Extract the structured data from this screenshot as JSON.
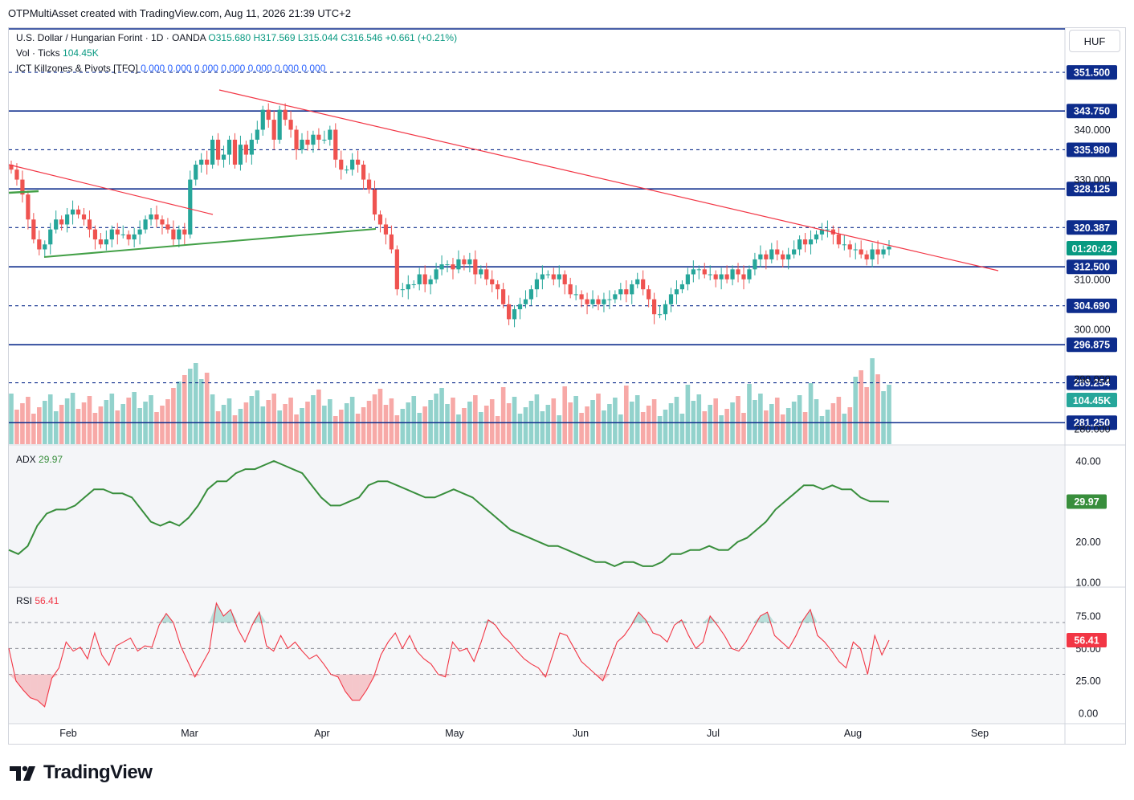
{
  "header": {
    "text": "OTPMultiAsset created with TradingView.com, Aug 11, 2026 21:39 UTC+2"
  },
  "symbol": {
    "name": "U.S. Dollar / Hungarian Forint · 1D · OANDA",
    "o": "O315.680",
    "h": "H317.569",
    "l": "L315.044",
    "c": "C316.546",
    "change": "+0.661 (+0.21%)",
    "volume_label": "Vol · Ticks",
    "volume_value": "104.45K",
    "indicator_label": "ICT Killzones & Pivots [TFO]",
    "indicator_values": "0.000  0.000  0.000  0.000  0.000  0.000  0.000"
  },
  "currency": "HUF",
  "countdown": "01:20:42",
  "colors": {
    "up": "#26a69a",
    "down": "#ef5350",
    "level": "#0d2c8c",
    "trend_red": "#f23645",
    "trend_green": "#43a047",
    "adx": "#388e3c",
    "rsi": "#f23645"
  },
  "price_axis": {
    "ticks": [
      "340.000",
      "330.000",
      "310.000",
      "300.000",
      "290.000",
      "280.000"
    ],
    "levels": [
      {
        "value": "351.500",
        "style": "dashed"
      },
      {
        "value": "343.750",
        "style": "solid"
      },
      {
        "value": "335.980",
        "style": "dashed"
      },
      {
        "value": "328.125",
        "style": "solid"
      },
      {
        "value": "320.387",
        "style": "dashed"
      },
      {
        "value": "312.500",
        "style": "solid"
      },
      {
        "value": "304.690",
        "style": "dashed"
      },
      {
        "value": "296.875",
        "style": "solid"
      },
      {
        "value": "289.254",
        "style": "dashed"
      },
      {
        "value": "281.250",
        "style": "solid"
      }
    ],
    "current_volume_tag": "104.45K"
  },
  "time_axis": {
    "labels": [
      "Feb",
      "Mar",
      "Apr",
      "May",
      "Jun",
      "Jul",
      "Aug",
      "Sep"
    ]
  },
  "adx": {
    "label": "ADX",
    "value": "29.97",
    "ticks": [
      "40.00",
      "20.00",
      "10.00"
    ]
  },
  "rsi": {
    "label": "RSI",
    "value": "56.41",
    "ticks": [
      "75.00",
      "50.00",
      "25.00",
      "0.00"
    ]
  },
  "footer": {
    "brand": "TradingView"
  },
  "chart_data": {
    "type": "candlestick",
    "title": "U.S. Dollar / Hungarian Forint · 1D · OANDA",
    "ylim": [
      279,
      353
    ],
    "closes": [
      332,
      330,
      327,
      322,
      318,
      316,
      317,
      320,
      322,
      321,
      323,
      324,
      323,
      322,
      320,
      318,
      317,
      318,
      320,
      319,
      319,
      318,
      319,
      320,
      322,
      323,
      322,
      321,
      320,
      318,
      320,
      319,
      330,
      333,
      334,
      333,
      338,
      334,
      335,
      338,
      333,
      337,
      335,
      338,
      340,
      344,
      342,
      338,
      344,
      342,
      340,
      336,
      338,
      337,
      339,
      338,
      338,
      340,
      334,
      332,
      332,
      334,
      333,
      330,
      328,
      323,
      321,
      319,
      316,
      308,
      308,
      309,
      309,
      311,
      309,
      310,
      312,
      313,
      313,
      312,
      314,
      313,
      314,
      311,
      312,
      310,
      309,
      308,
      305,
      302,
      304,
      305,
      306,
      308,
      310,
      311,
      311,
      310,
      311,
      309,
      307,
      307,
      306,
      305,
      306,
      305,
      306,
      306,
      307,
      308,
      307,
      309,
      310,
      308,
      306,
      303,
      303,
      305,
      307,
      308,
      309,
      311,
      312,
      312,
      311,
      311,
      310,
      311,
      310,
      312,
      311,
      310,
      312,
      314,
      315,
      314,
      316,
      315,
      314,
      315,
      316,
      318,
      317,
      318,
      319,
      320,
      320,
      319,
      317,
      317,
      316,
      316,
      315,
      314,
      316,
      315,
      316,
      316.546
    ],
    "volume_note": "Vol · Ticks histogram, last value 104.45K",
    "trendlines": [
      {
        "name": "red_upper",
        "from": [
          "Mar 11",
          346.0
        ],
        "to": [
          "Aug 20",
          312.5
        ]
      },
      {
        "name": "red_left",
        "from": [
          "Jan 14",
          333.5
        ],
        "to": [
          "Feb 29",
          322.0
        ]
      },
      {
        "name": "green_support",
        "from": [
          "Jan 18",
          314.0
        ],
        "to": [
          "Apr 12",
          320.2
        ]
      }
    ],
    "adx_series": [
      18,
      17,
      19,
      24,
      27,
      28,
      28,
      29,
      31,
      33,
      33,
      32,
      32,
      31,
      28,
      25,
      24,
      25,
      24,
      26,
      29,
      33,
      35,
      35,
      37,
      38,
      38,
      39,
      40,
      39,
      38,
      37,
      34,
      31,
      29,
      29,
      30,
      31,
      34,
      35,
      35,
      34,
      33,
      32,
      31,
      31,
      32,
      33,
      32,
      31,
      29,
      27,
      25,
      23,
      22,
      21,
      20,
      19,
      19,
      18,
      17,
      16,
      15,
      15,
      14,
      15,
      15,
      14,
      14,
      15,
      17,
      17,
      18,
      18,
      19,
      18,
      18,
      20,
      21,
      23,
      25,
      28,
      30,
      32,
      34,
      34,
      33,
      34,
      33,
      33,
      31,
      30,
      30,
      29.97
    ],
    "rsi_series": [
      50,
      25,
      18,
      12,
      10,
      5,
      27,
      35,
      55,
      48,
      51,
      42,
      62,
      45,
      37,
      52,
      55,
      58,
      48,
      52,
      51,
      68,
      77,
      70,
      52,
      40,
      28,
      38,
      48,
      85,
      75,
      80,
      65,
      55,
      68,
      78,
      52,
      48,
      60,
      50,
      55,
      48,
      42,
      45,
      38,
      30,
      28,
      17,
      10,
      10,
      18,
      28,
      45,
      55,
      62,
      50,
      60,
      48,
      42,
      38,
      30,
      28,
      55,
      48,
      50,
      40,
      55,
      72,
      68,
      60,
      55,
      48,
      42,
      38,
      35,
      28,
      45,
      62,
      60,
      50,
      40,
      35,
      30,
      25,
      40,
      55,
      60,
      68,
      78,
      72,
      62,
      60,
      55,
      68,
      72,
      60,
      50,
      55,
      75,
      68,
      60,
      50,
      48,
      55,
      65,
      75,
      78,
      60,
      55,
      50,
      60,
      72,
      80,
      60,
      55,
      48,
      40,
      35,
      55,
      50,
      30,
      60,
      45,
      56.41
    ]
  }
}
